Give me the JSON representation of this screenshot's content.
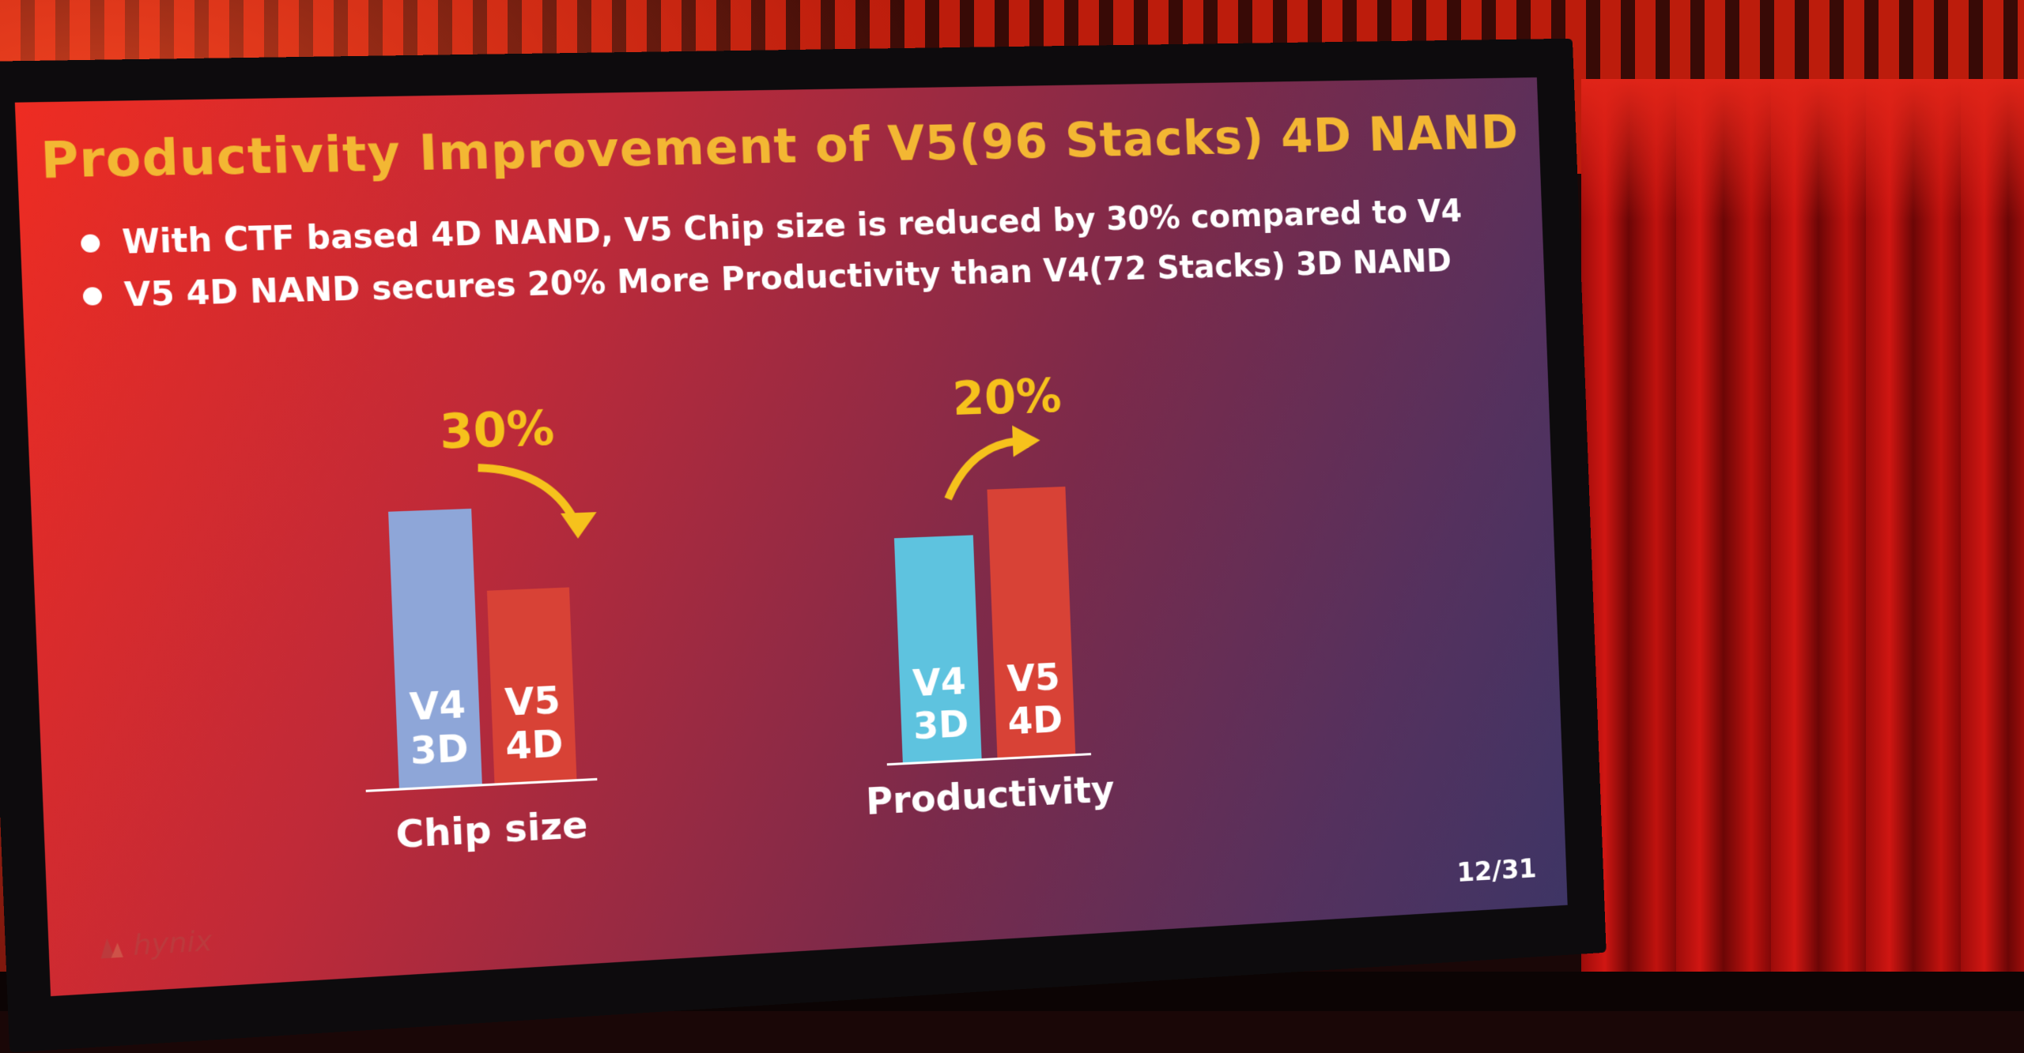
{
  "slide": {
    "title": "Productivity Improvement of V5(96 Stacks) 4D NAND",
    "bullets": [
      "With CTF based 4D NAND, V5 Chip size is reduced by 30% compared to V4",
      "V5 4D NAND secures 20% More Productivity than V4(72 Stacks) 3D NAND"
    ],
    "page": "12/31",
    "logo_text": "hynix"
  },
  "colors": {
    "title": "#f3b733",
    "percent": "#f6c21c",
    "v4_chip": "#8ea6d8",
    "v5": "#d84236",
    "v4_productivity": "#5ec3df"
  },
  "chart_data": [
    {
      "type": "bar",
      "title": "",
      "xlabel": "Chip size",
      "ylabel": "",
      "annotation": "30%",
      "categories": [
        "V4 3D",
        "V5 4D"
      ],
      "bar_labels": [
        [
          "V4",
          "3D"
        ],
        [
          "V5",
          "4D"
        ]
      ],
      "values": [
        1.0,
        0.7
      ],
      "ylim": [
        0,
        1.0
      ],
      "grid": false
    },
    {
      "type": "bar",
      "title": "",
      "xlabel": "Productivity",
      "ylabel": "",
      "annotation": "20%",
      "categories": [
        "V4 3D",
        "V5 4D"
      ],
      "bar_labels": [
        [
          "V4",
          "3D"
        ],
        [
          "V5",
          "4D"
        ]
      ],
      "values": [
        1.0,
        1.2
      ],
      "ylim": [
        0,
        1.2
      ],
      "grid": false
    }
  ]
}
